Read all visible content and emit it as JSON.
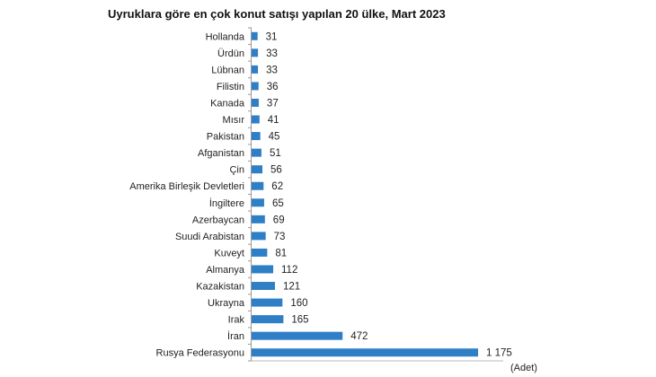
{
  "chart_data": {
    "type": "bar",
    "orientation": "horizontal",
    "title": "Uyruklara göre en çok konut satışı yapılan 20 ülke, Mart 2023",
    "unit_label": "(Adet)",
    "categories": [
      "Hollanda",
      "Ürdün",
      "Lübnan",
      "Filistin",
      "Kanada",
      "Mısır",
      "Pakistan",
      "Afganistan",
      "Çin",
      "Amerika Birleşik Devletleri",
      "İngiltere",
      "Azerbaycan",
      "Suudi Arabistan",
      "Kuveyt",
      "Almanya",
      "Kazakistan",
      "Ukrayna",
      "Irak",
      "İran",
      "Rusya Federasyonu"
    ],
    "values": [
      31,
      33,
      33,
      36,
      37,
      41,
      45,
      51,
      56,
      62,
      65,
      69,
      73,
      81,
      112,
      121,
      160,
      165,
      472,
      1175
    ],
    "value_labels": [
      "31",
      "33",
      "33",
      "36",
      "37",
      "41",
      "45",
      "51",
      "56",
      "62",
      "65",
      "69",
      "73",
      "81",
      "112",
      "121",
      "160",
      "165",
      "472",
      "1 175"
    ],
    "bar_color": "#2f7fc6",
    "xlim": [
      0,
      1175
    ],
    "grid": false
  }
}
